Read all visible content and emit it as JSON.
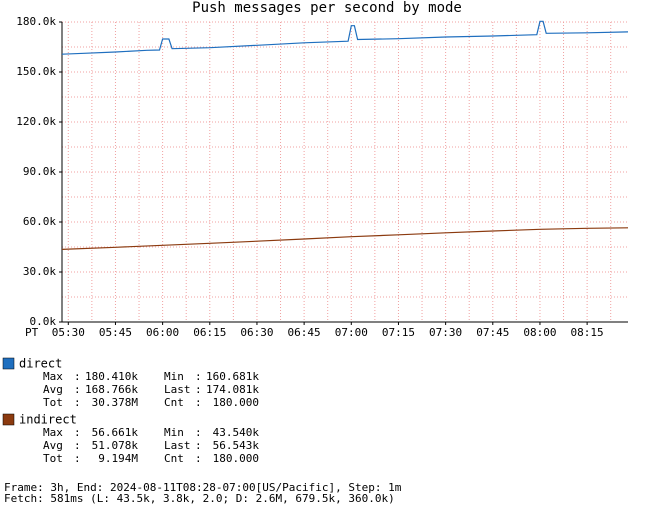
{
  "chart_data": {
    "type": "line",
    "title": "Push messages per second by mode",
    "x_axis_label": "PT",
    "xlim": [
      "05:28",
      "08:28"
    ],
    "xticks": [
      "05:30",
      "05:45",
      "06:00",
      "06:15",
      "06:30",
      "06:45",
      "07:00",
      "07:15",
      "07:30",
      "07:45",
      "08:00",
      "08:15"
    ],
    "ylim": [
      0,
      180
    ],
    "yticks": [
      {
        "value": 0,
        "label": "0.0k"
      },
      {
        "value": 30,
        "label": "30.0k"
      },
      {
        "value": 60,
        "label": "60.0k"
      },
      {
        "value": 90,
        "label": "90.0k"
      },
      {
        "value": 120,
        "label": "120.0k"
      },
      {
        "value": 150,
        "label": "150.0k"
      },
      {
        "value": 180,
        "label": "180.0k"
      }
    ],
    "grid": true,
    "stat_separator": ":",
    "series": [
      {
        "name": "direct",
        "color": "#1f6fbf",
        "x": [
          "05:28",
          "05:35",
          "05:45",
          "05:55",
          "05:59",
          "06:00",
          "06:02",
          "06:03",
          "06:15",
          "06:30",
          "06:45",
          "06:59",
          "07:00",
          "07:01",
          "07:02",
          "07:15",
          "07:30",
          "07:45",
          "07:59",
          "08:00",
          "08:01",
          "08:02",
          "08:15",
          "08:28"
        ],
        "values": [
          160.681,
          161.2,
          162.0,
          163.0,
          163.2,
          169.8,
          169.8,
          164.0,
          164.6,
          166.0,
          167.5,
          168.5,
          177.8,
          177.8,
          169.5,
          170.0,
          171.0,
          171.6,
          172.4,
          180.41,
          180.41,
          173.2,
          173.5,
          174.081
        ],
        "stats": [
          [
            {
              "label": "Max",
              "value": "180.410k"
            },
            {
              "label": "Min",
              "value": "160.681k"
            }
          ],
          [
            {
              "label": "Avg",
              "value": "168.766k"
            },
            {
              "label": "Last",
              "value": "174.081k"
            }
          ],
          [
            {
              "label": "Tot",
              "value": "30.378M"
            },
            {
              "label": "Cnt",
              "value": "180.000"
            }
          ]
        ]
      },
      {
        "name": "indirect",
        "color": "#8b3a0f",
        "x": [
          "05:28",
          "05:45",
          "06:00",
          "06:15",
          "06:30",
          "06:45",
          "07:00",
          "07:15",
          "07:30",
          "07:45",
          "08:00",
          "08:15",
          "08:28"
        ],
        "values": [
          43.54,
          44.8,
          46.0,
          47.2,
          48.5,
          49.8,
          51.2,
          52.3,
          53.5,
          54.6,
          55.6,
          56.2,
          56.543
        ],
        "stats": [
          [
            {
              "label": "Max",
              "value": "56.661k"
            },
            {
              "label": "Min",
              "value": "43.540k"
            }
          ],
          [
            {
              "label": "Avg",
              "value": "51.078k"
            },
            {
              "label": "Last",
              "value": "56.543k"
            }
          ],
          [
            {
              "label": "Tot",
              "value": "9.194M"
            },
            {
              "label": "Cnt",
              "value": "180.000"
            }
          ]
        ]
      }
    ],
    "footer": [
      "Frame: 3h, End: 2024-08-11T08:28-07:00[US/Pacific], Step: 1m",
      "Fetch: 581ms (L: 43.5k, 3.8k, 2.0; D: 2.6M, 679.5k, 360.0k)"
    ]
  }
}
